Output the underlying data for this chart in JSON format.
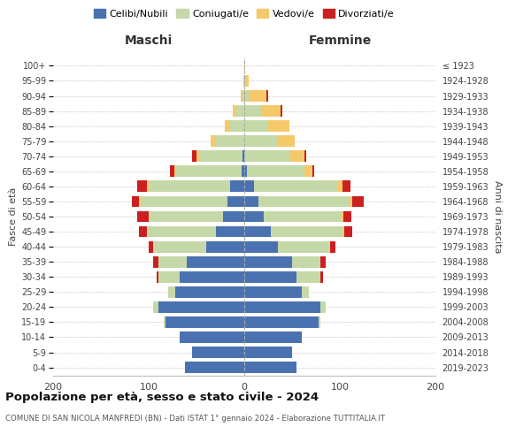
{
  "age_groups": [
    "0-4",
    "5-9",
    "10-14",
    "15-19",
    "20-24",
    "25-29",
    "30-34",
    "35-39",
    "40-44",
    "45-49",
    "50-54",
    "55-59",
    "60-64",
    "65-69",
    "70-74",
    "75-79",
    "80-84",
    "85-89",
    "90-94",
    "95-99",
    "100+"
  ],
  "birth_years": [
    "2019-2023",
    "2014-2018",
    "2009-2013",
    "2004-2008",
    "1999-2003",
    "1994-1998",
    "1989-1993",
    "1984-1988",
    "1979-1983",
    "1974-1978",
    "1969-1973",
    "1964-1968",
    "1959-1963",
    "1954-1958",
    "1949-1953",
    "1944-1948",
    "1939-1943",
    "1934-1938",
    "1929-1933",
    "1924-1928",
    "≤ 1923"
  ],
  "maschi": {
    "celibi": [
      62,
      55,
      68,
      82,
      90,
      72,
      68,
      60,
      40,
      30,
      22,
      18,
      15,
      3,
      2,
      0,
      0,
      0,
      0,
      0,
      0
    ],
    "coniugati": [
      0,
      0,
      0,
      2,
      5,
      8,
      22,
      30,
      55,
      72,
      78,
      90,
      85,
      68,
      45,
      30,
      15,
      8,
      2,
      1,
      0
    ],
    "vedovi": [
      0,
      0,
      0,
      0,
      0,
      0,
      0,
      0,
      0,
      0,
      0,
      2,
      2,
      2,
      3,
      5,
      5,
      4,
      2,
      0,
      0
    ],
    "divorziati": [
      0,
      0,
      0,
      0,
      0,
      0,
      2,
      5,
      5,
      8,
      12,
      8,
      10,
      5,
      5,
      0,
      0,
      0,
      0,
      0,
      0
    ]
  },
  "femmine": {
    "nubili": [
      55,
      50,
      60,
      78,
      80,
      60,
      55,
      50,
      35,
      28,
      20,
      15,
      10,
      3,
      0,
      0,
      0,
      0,
      0,
      0,
      0
    ],
    "coniugate": [
      0,
      0,
      0,
      2,
      5,
      8,
      25,
      30,
      55,
      75,
      82,
      95,
      88,
      60,
      48,
      35,
      25,
      18,
      5,
      2,
      0
    ],
    "vedove": [
      0,
      0,
      0,
      0,
      0,
      0,
      0,
      0,
      0,
      2,
      2,
      3,
      5,
      8,
      15,
      18,
      22,
      20,
      18,
      3,
      1
    ],
    "divorziate": [
      0,
      0,
      0,
      0,
      0,
      0,
      2,
      5,
      5,
      8,
      8,
      12,
      8,
      2,
      2,
      0,
      0,
      2,
      2,
      0,
      0
    ]
  },
  "colors": {
    "celibi_nubili": "#4a72b0",
    "coniugati": "#c5d9a8",
    "vedovi": "#f5c96a",
    "divorziati": "#cc1f1f"
  },
  "title": "Popolazione per età, sesso e stato civile - 2024",
  "subtitle": "COMUNE DI SAN NICOLA MANFREDI (BN) - Dati ISTAT 1° gennaio 2024 - Elaborazione TUTTITALIA.IT",
  "xlabel_left": "Maschi",
  "xlabel_right": "Femmine",
  "ylabel_left": "Fasce di età",
  "ylabel_right": "Anni di nascita",
  "xlim": 200,
  "legend_labels": [
    "Celibi/Nubili",
    "Coniugati/e",
    "Vedovi/e",
    "Divorziati/e"
  ],
  "bg_color": "#ffffff",
  "grid_color": "#cccccc"
}
